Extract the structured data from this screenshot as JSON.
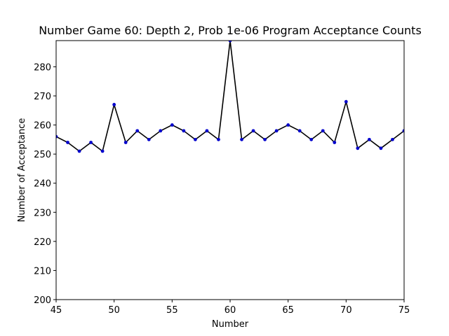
{
  "chart_data": {
    "type": "line",
    "title": "Number Game 60: Depth 2, Prob 1e-06 Program Acceptance Counts",
    "xlabel": "Number",
    "ylabel": "Number of Acceptance",
    "xlim": [
      45,
      75
    ],
    "ylim": [
      200,
      289
    ],
    "xticks": [
      45,
      50,
      55,
      60,
      65,
      70,
      75
    ],
    "yticks": [
      200,
      210,
      220,
      230,
      240,
      250,
      260,
      270,
      280
    ],
    "grid": false,
    "line_color": "#000000",
    "marker_color": "#0000cc",
    "x": [
      45,
      46,
      47,
      48,
      49,
      50,
      51,
      52,
      53,
      54,
      55,
      56,
      57,
      58,
      59,
      60,
      61,
      62,
      63,
      64,
      65,
      66,
      67,
      68,
      69,
      70,
      71,
      72,
      73,
      74,
      75
    ],
    "series": [
      {
        "values": [
          256,
          254,
          251,
          254,
          251,
          267,
          254,
          258,
          255,
          258,
          260,
          258,
          255,
          258,
          255,
          289,
          255,
          258,
          255,
          258,
          260,
          258,
          255,
          258,
          254,
          268,
          252,
          255,
          252,
          255,
          258
        ]
      }
    ]
  }
}
